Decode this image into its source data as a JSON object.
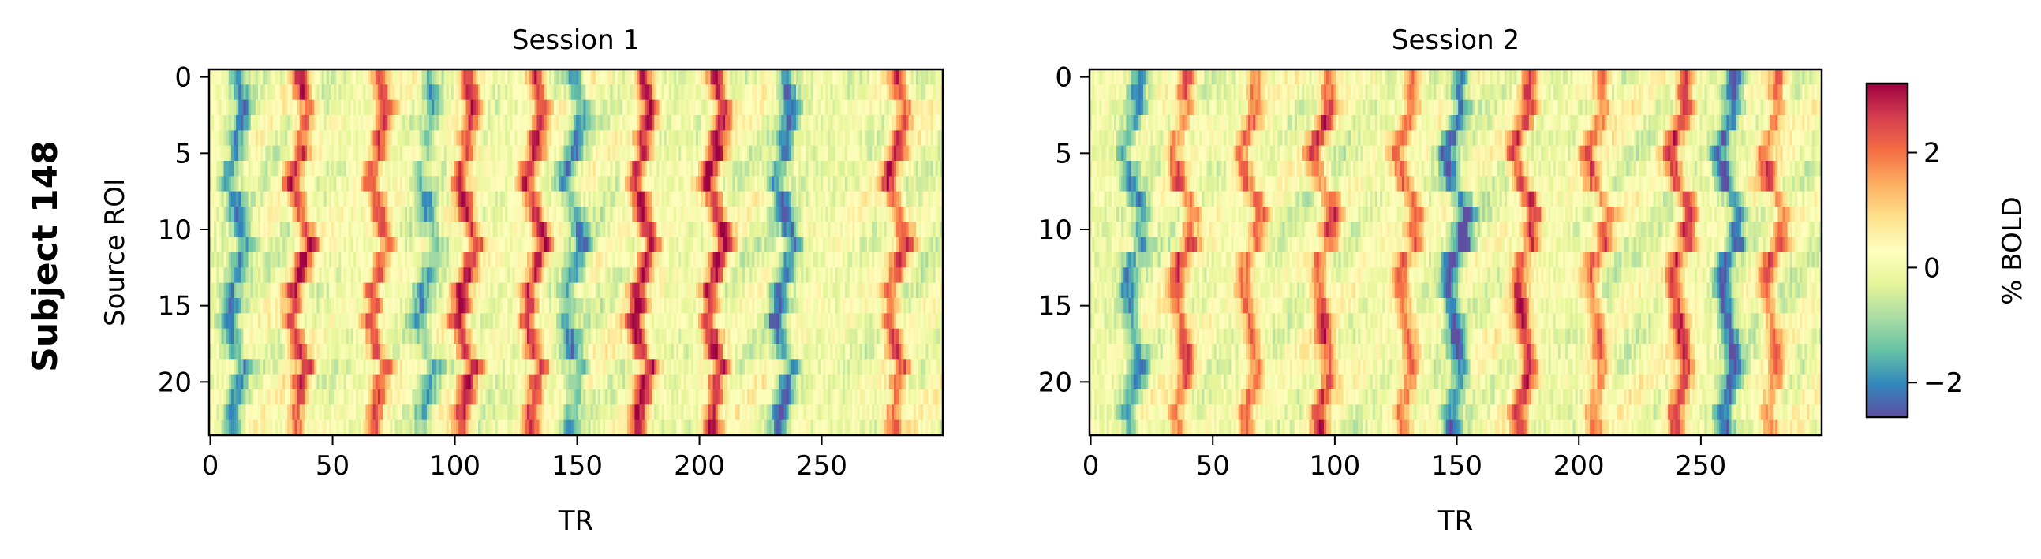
{
  "figure": {
    "row_label": "Subject 148"
  },
  "chart_data": [
    {
      "type": "heatmap",
      "title": "Session 1",
      "xlabel": "TR",
      "ylabel": "Source ROI",
      "x_range": [
        0,
        299
      ],
      "y_range": [
        0,
        23
      ],
      "x_ticks": [
        0,
        50,
        100,
        150,
        200,
        250
      ],
      "y_ticks": [
        0,
        5,
        10,
        15,
        20
      ],
      "n_rows": 24,
      "n_cols": 300,
      "colormap": "Spectral_r",
      "vmin": -2.6,
      "vmax": 3.2,
      "dominant_events": [
        {
          "tr": 10,
          "value": -2.0
        },
        {
          "tr": 36,
          "value": 2.6
        },
        {
          "tr": 68,
          "value": 2.4
        },
        {
          "tr": 88,
          "value": -1.4
        },
        {
          "tr": 104,
          "value": 2.8
        },
        {
          "tr": 132,
          "value": 2.7
        },
        {
          "tr": 148,
          "value": -1.8
        },
        {
          "tr": 176,
          "value": 3.0
        },
        {
          "tr": 206,
          "value": 3.0
        },
        {
          "tr": 234,
          "value": -2.2
        },
        {
          "tr": 280,
          "value": 2.4
        }
      ]
    },
    {
      "type": "heatmap",
      "title": "Session 2",
      "xlabel": "TR",
      "ylabel": "",
      "x_range": [
        0,
        299
      ],
      "y_range": [
        0,
        23
      ],
      "x_ticks": [
        0,
        50,
        100,
        150,
        200,
        250
      ],
      "y_ticks": [
        0,
        5,
        10,
        15,
        20
      ],
      "n_rows": 24,
      "n_cols": 300,
      "colormap": "Spectral_r",
      "vmin": -2.6,
      "vmax": 3.2,
      "dominant_events": [
        {
          "tr": 18,
          "value": -1.8
        },
        {
          "tr": 38,
          "value": 2.2
        },
        {
          "tr": 66,
          "value": 2.0
        },
        {
          "tr": 96,
          "value": 2.4
        },
        {
          "tr": 130,
          "value": 2.0
        },
        {
          "tr": 150,
          "value": -2.4
        },
        {
          "tr": 178,
          "value": 2.6
        },
        {
          "tr": 208,
          "value": 2.0
        },
        {
          "tr": 242,
          "value": 2.6
        },
        {
          "tr": 262,
          "value": -2.4
        },
        {
          "tr": 280,
          "value": 2.0
        }
      ]
    }
  ],
  "colorbar": {
    "label": "% BOLD",
    "ticks": [
      -2,
      0,
      2
    ],
    "tick_labels": [
      "−2",
      "0",
      "2"
    ],
    "vmin": -2.6,
    "vmax": 3.2
  }
}
